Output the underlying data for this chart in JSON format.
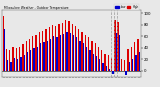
{
  "title": "Milwaukee Weather - Outdoor Temperature",
  "bar_color_high": "#dd0000",
  "bar_color_low": "#0000cc",
  "background_color": "#e8e8e8",
  "ylim": [
    -10,
    105
  ],
  "ytick_vals": [
    0,
    20,
    40,
    60,
    80,
    100
  ],
  "ytick_labels": [
    "0",
    "20",
    "40",
    "60",
    "80",
    "100"
  ],
  "highs": [
    95,
    38,
    36,
    42,
    40,
    42,
    46,
    52,
    55,
    60,
    62,
    68,
    70,
    72,
    76,
    80,
    78,
    82,
    84,
    88,
    86,
    82,
    78,
    72,
    68,
    62,
    58,
    52,
    48,
    42,
    36,
    30,
    28,
    22,
    88,
    85,
    20,
    18,
    38,
    42,
    50,
    55
  ],
  "lows": [
    72,
    18,
    16,
    22,
    20,
    24,
    28,
    33,
    36,
    40,
    42,
    48,
    50,
    52,
    56,
    60,
    58,
    62,
    64,
    68,
    66,
    62,
    58,
    52,
    48,
    42,
    36,
    30,
    26,
    20,
    14,
    8,
    4,
    -5,
    65,
    62,
    0,
    -8,
    16,
    20,
    28,
    33
  ],
  "n_bars": 42,
  "dashed_indices": [
    33,
    34,
    35
  ],
  "bar_width": 0.4,
  "legend_labels": [
    "High",
    "Low"
  ]
}
